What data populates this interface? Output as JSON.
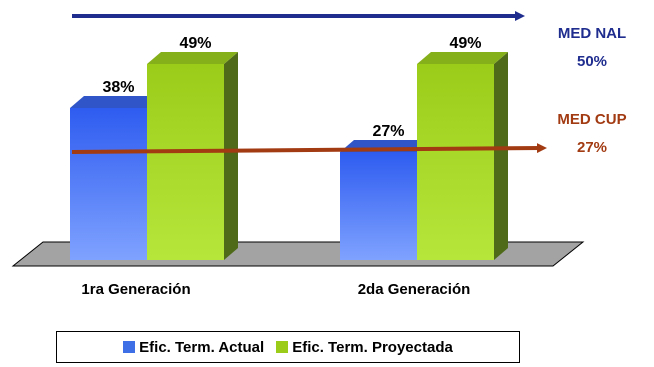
{
  "chart_data": {
    "type": "bar",
    "categories": [
      "1ra Generación",
      "2da Generación"
    ],
    "series": [
      {
        "name": "Efic. Term. Actual",
        "values": [
          38,
          27
        ],
        "labels": [
          "38%",
          "27%"
        ],
        "color": "#3f6fe6"
      },
      {
        "name": "Efic. Term. Proyectada",
        "values": [
          49,
          49
        ],
        "labels": [
          "49%",
          "49%"
        ],
        "color": "#9ccc1a"
      }
    ],
    "ylim": [
      0,
      60
    ],
    "grid": false,
    "legend_position": "bottom",
    "reference_lines": [
      {
        "label": "MED NAL",
        "value_label": "50%",
        "value": 50,
        "color": "#1f2d8f"
      },
      {
        "label": "MED CUP",
        "value_label": "27%",
        "value": 27,
        "color": "#a23a12"
      }
    ]
  }
}
